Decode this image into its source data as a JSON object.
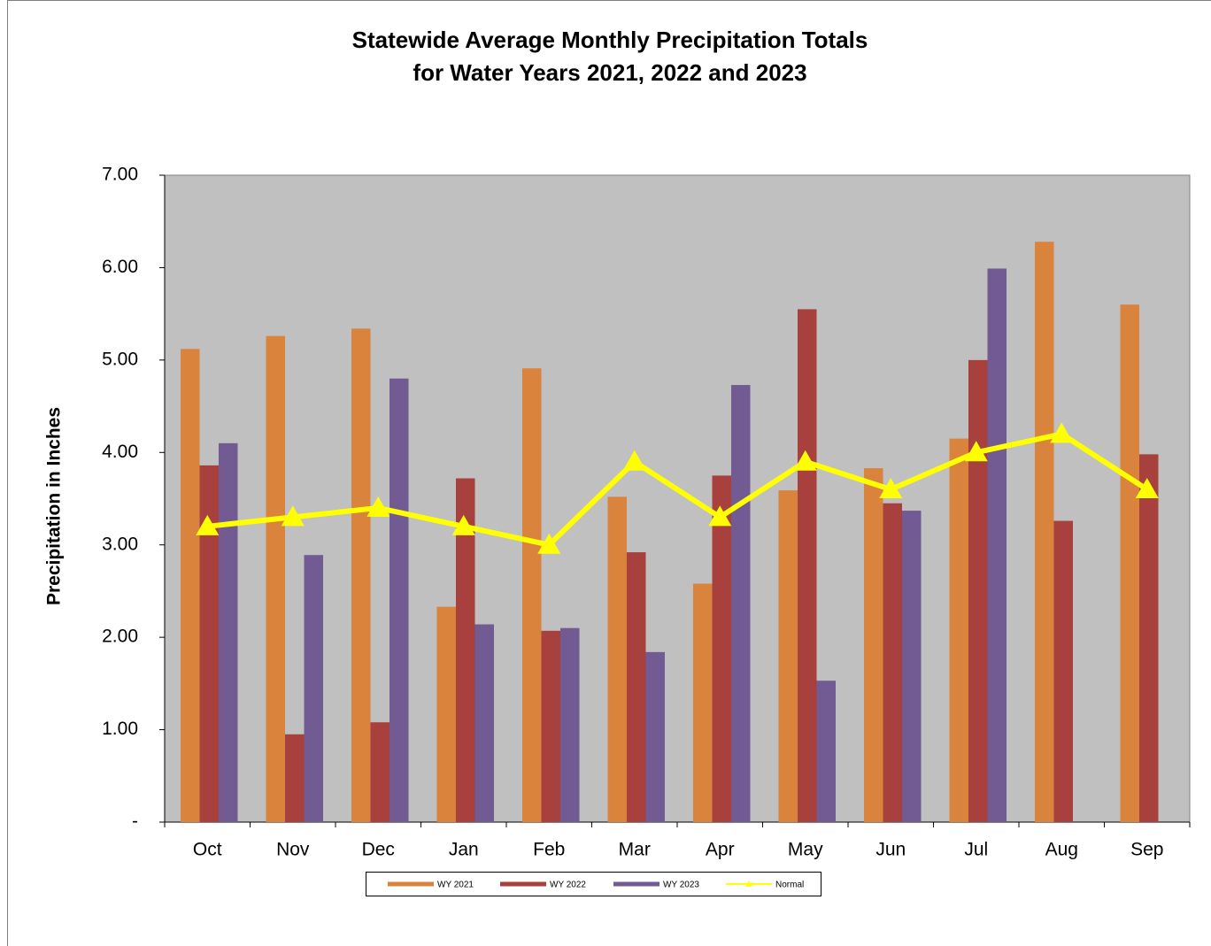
{
  "chart_data": {
    "type": "bar",
    "title": [
      "Statewide Average Monthly Precipitation Totals",
      "for Water Years 2021, 2022 and 2023"
    ],
    "y_label": "Precipitation in Inches",
    "categories": [
      "Oct",
      "Nov",
      "Dec",
      "Jan",
      "Feb",
      "Mar",
      "Apr",
      "May",
      "Jun",
      "Jul",
      "Aug",
      "Sep"
    ],
    "series": [
      {
        "name": "WY 2021",
        "type": "bar",
        "color": "#d9833d",
        "values": [
          5.12,
          5.26,
          5.34,
          2.33,
          4.91,
          3.52,
          2.58,
          3.59,
          3.83,
          4.15,
          6.28,
          5.6
        ]
      },
      {
        "name": "WY 2022",
        "type": "bar",
        "color": "#a8403e",
        "values": [
          3.86,
          0.95,
          1.08,
          3.72,
          2.07,
          2.92,
          3.75,
          5.55,
          3.45,
          5.0,
          3.26,
          3.98
        ]
      },
      {
        "name": "WY 2023",
        "type": "bar",
        "color": "#725a93",
        "values": [
          4.1,
          2.89,
          4.8,
          2.14,
          2.1,
          1.84,
          4.73,
          1.53,
          3.37,
          5.99,
          null,
          null
        ]
      },
      {
        "name": "Normal",
        "type": "line",
        "color": "#ffff00",
        "values": [
          3.2,
          3.3,
          3.4,
          3.2,
          3.0,
          3.9,
          3.3,
          3.9,
          3.6,
          4.0,
          4.2,
          3.6
        ]
      }
    ],
    "ylim": [
      0,
      7
    ],
    "yticks": [
      {
        "value": 0,
        "label": "-"
      },
      {
        "value": 1,
        "label": "1.00"
      },
      {
        "value": 2,
        "label": "2.00"
      },
      {
        "value": 3,
        "label": "3.00"
      },
      {
        "value": 4,
        "label": "4.00"
      },
      {
        "value": 5,
        "label": "5.00"
      },
      {
        "value": 6,
        "label": "6.00"
      },
      {
        "value": 7,
        "label": "7.00"
      }
    ],
    "plot_background": "#c0c0c0",
    "legend": "bottom"
  }
}
